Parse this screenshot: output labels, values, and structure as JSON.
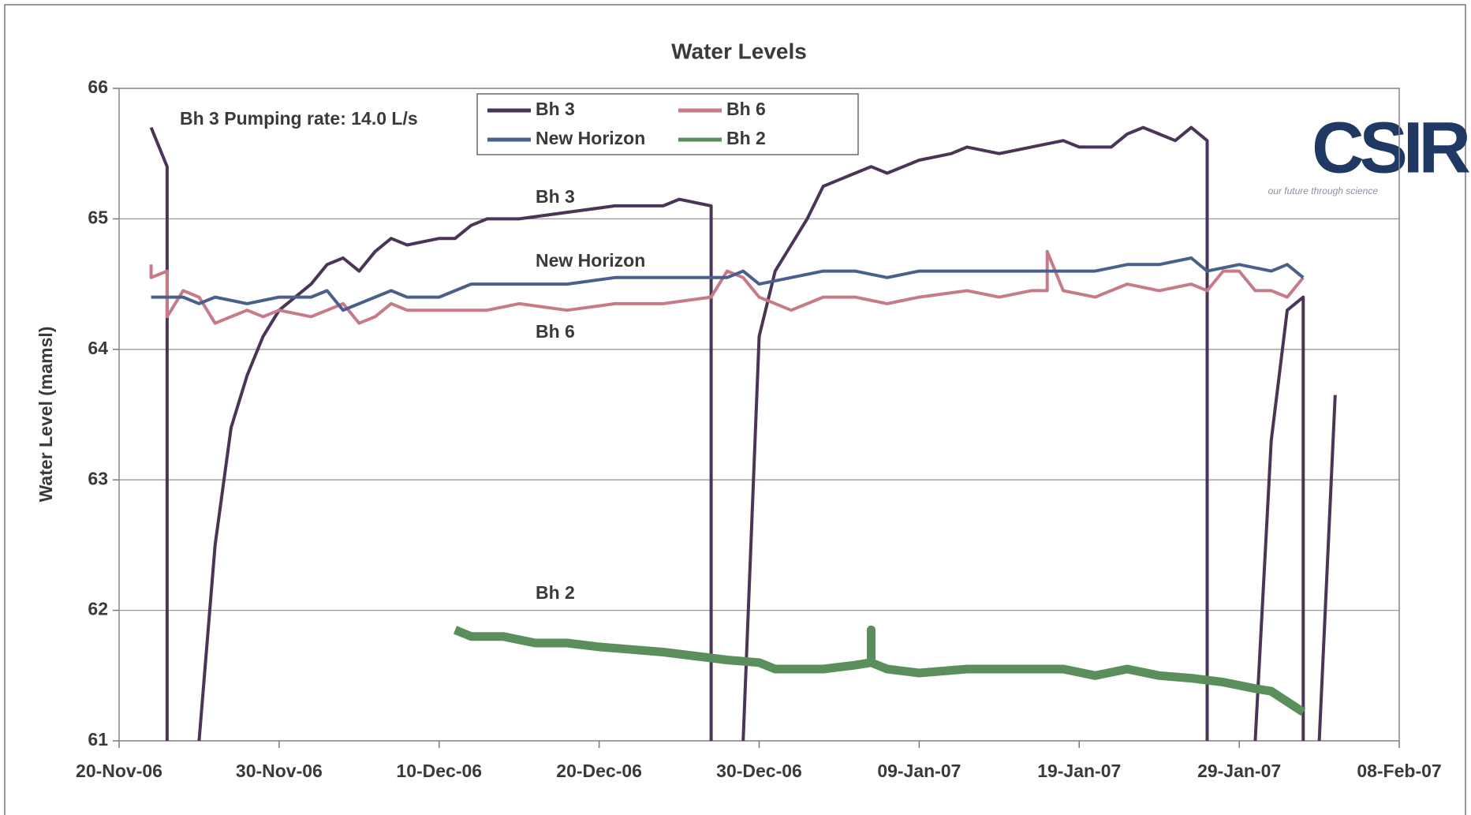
{
  "chart_data": {
    "type": "line",
    "title": "Water Levels",
    "y_label": "Water Level (mamsl)",
    "ylim": [
      61,
      66
    ],
    "yticks": [
      61,
      62,
      63,
      64,
      65,
      66
    ],
    "xlim": [
      "20-Nov-06",
      "08-Feb-07"
    ],
    "xticks": [
      "20-Nov-06",
      "30-Nov-06",
      "10-Dec-06",
      "20-Dec-06",
      "30-Dec-06",
      "09-Jan-07",
      "19-Jan-07",
      "29-Jan-07",
      "08-Feb-07"
    ],
    "grid": true,
    "legend": "top",
    "annotations": [
      "Bh 3 Pumping rate: 14.0 L/s",
      "Bh 3",
      "New Horizon",
      "Bh 6",
      "Bh 2"
    ],
    "series": [
      {
        "name": "Bh 3",
        "color": "#4b3557",
        "x": [
          "22-Nov-06",
          "23-Nov-06",
          "23-Nov-06",
          "24-Nov-06",
          "25-Nov-06",
          "26-Nov-06",
          "27-Nov-06",
          "28-Nov-06",
          "29-Nov-06",
          "30-Nov-06",
          "02-Dec-06",
          "03-Dec-06",
          "04-Dec-06",
          "05-Dec-06",
          "06-Dec-06",
          "07-Dec-06",
          "08-Dec-06",
          "10-Dec-06",
          "11-Dec-06",
          "12-Dec-06",
          "13-Dec-06",
          "15-Dec-06",
          "18-Dec-06",
          "21-Dec-06",
          "24-Dec-06",
          "25-Dec-06",
          "27-Dec-06",
          "27-Dec-06",
          "28-Dec-06",
          "29-Dec-06",
          "30-Dec-06",
          "31-Dec-06",
          "01-Jan-07",
          "02-Jan-07",
          "03-Jan-07",
          "04-Jan-07",
          "05-Jan-07",
          "06-Jan-07",
          "07-Jan-07",
          "09-Jan-07",
          "11-Jan-07",
          "12-Jan-07",
          "14-Jan-07",
          "16-Jan-07",
          "18-Jan-07",
          "19-Jan-07",
          "21-Jan-07",
          "22-Jan-07",
          "23-Jan-07",
          "24-Jan-07",
          "25-Jan-07",
          "26-Jan-07",
          "27-Jan-07",
          "27-Jan-07",
          "28-Jan-07",
          "30-Jan-07",
          "31-Jan-07",
          "01-Feb-07",
          "02-Feb-07",
          "02-Feb-07",
          "03-Feb-07",
          "03-Feb-07",
          "04-Feb-07"
        ],
        "values": [
          65.7,
          65.4,
          61,
          null,
          61,
          62.5,
          63.4,
          63.8,
          64.1,
          64.3,
          64.5,
          64.65,
          64.7,
          64.6,
          64.75,
          64.85,
          64.8,
          64.85,
          64.85,
          64.95,
          65.0,
          65.0,
          65.05,
          65.1,
          65.1,
          65.15,
          65.1,
          61,
          null,
          61,
          64.1,
          64.6,
          64.8,
          65.0,
          65.25,
          65.3,
          65.35,
          65.4,
          65.35,
          65.45,
          65.5,
          65.55,
          65.5,
          65.55,
          65.6,
          65.55,
          65.55,
          65.65,
          65.7,
          65.65,
          65.6,
          65.7,
          65.6,
          61,
          null,
          61,
          63.3,
          64.3,
          64.4,
          61,
          null,
          61,
          63.65
        ]
      },
      {
        "name": "Bh 6",
        "color": "#c77a87",
        "x": [
          "22-Nov-06",
          "22-Nov-06",
          "23-Nov-06",
          "23-Nov-06",
          "24-Nov-06",
          "25-Nov-06",
          "26-Nov-06",
          "27-Nov-06",
          "28-Nov-06",
          "29-Nov-06",
          "30-Nov-06",
          "02-Dec-06",
          "03-Dec-06",
          "04-Dec-06",
          "05-Dec-06",
          "06-Dec-06",
          "07-Dec-06",
          "08-Dec-06",
          "10-Dec-06",
          "13-Dec-06",
          "15-Dec-06",
          "18-Dec-06",
          "21-Dec-06",
          "24-Dec-06",
          "27-Dec-06",
          "28-Dec-06",
          "29-Dec-06",
          "30-Dec-06",
          "01-Jan-07",
          "03-Jan-07",
          "05-Jan-07",
          "07-Jan-07",
          "09-Jan-07",
          "12-Jan-07",
          "14-Jan-07",
          "16-Jan-07",
          "17-Jan-07",
          "17-Jan-07",
          "18-Jan-07",
          "20-Jan-07",
          "22-Jan-07",
          "24-Jan-07",
          "26-Jan-07",
          "27-Jan-07",
          "28-Jan-07",
          "29-Jan-07",
          "30-Jan-07",
          "31-Jan-07",
          "01-Feb-07",
          "02-Feb-07"
        ],
        "values": [
          64.65,
          64.55,
          64.6,
          64.25,
          64.45,
          64.4,
          64.2,
          64.25,
          64.3,
          64.25,
          64.3,
          64.25,
          64.3,
          64.35,
          64.2,
          64.25,
          64.35,
          64.3,
          64.3,
          64.3,
          64.35,
          64.3,
          64.35,
          64.35,
          64.4,
          64.6,
          64.55,
          64.4,
          64.3,
          64.4,
          64.4,
          64.35,
          64.4,
          64.45,
          64.4,
          64.45,
          64.45,
          64.75,
          64.45,
          64.4,
          64.5,
          64.45,
          64.5,
          64.45,
          64.6,
          64.6,
          64.45,
          64.45,
          64.4,
          64.55
        ]
      },
      {
        "name": "New Horizon",
        "color": "#4a5f8a",
        "x": [
          "22-Nov-06",
          "24-Nov-06",
          "25-Nov-06",
          "26-Nov-06",
          "28-Nov-06",
          "30-Nov-06",
          "02-Dec-06",
          "03-Dec-06",
          "04-Dec-06",
          "05-Dec-06",
          "06-Dec-06",
          "07-Dec-06",
          "08-Dec-06",
          "10-Dec-06",
          "12-Dec-06",
          "15-Dec-06",
          "18-Dec-06",
          "21-Dec-06",
          "24-Dec-06",
          "27-Dec-06",
          "28-Dec-06",
          "29-Dec-06",
          "30-Dec-06",
          "01-Jan-07",
          "03-Jan-07",
          "05-Jan-07",
          "07-Jan-07",
          "09-Jan-07",
          "12-Jan-07",
          "14-Jan-07",
          "16-Jan-07",
          "18-Jan-07",
          "20-Jan-07",
          "22-Jan-07",
          "24-Jan-07",
          "26-Jan-07",
          "27-Jan-07",
          "29-Jan-07",
          "31-Jan-07",
          "01-Feb-07",
          "02-Feb-07"
        ],
        "values": [
          64.4,
          64.4,
          64.35,
          64.4,
          64.35,
          64.4,
          64.4,
          64.45,
          64.3,
          64.35,
          64.4,
          64.45,
          64.4,
          64.4,
          64.5,
          64.5,
          64.5,
          64.55,
          64.55,
          64.55,
          64.55,
          64.6,
          64.5,
          64.55,
          64.6,
          64.6,
          64.55,
          64.6,
          64.6,
          64.6,
          64.6,
          64.6,
          64.6,
          64.65,
          64.65,
          64.7,
          64.6,
          64.65,
          64.6,
          64.65,
          64.55
        ]
      },
      {
        "name": "Bh 2",
        "color": "#5a8f5c",
        "x": [
          "11-Dec-06",
          "12-Dec-06",
          "14-Dec-06",
          "16-Dec-06",
          "18-Dec-06",
          "20-Dec-06",
          "22-Dec-06",
          "24-Dec-06",
          "26-Dec-06",
          "28-Dec-06",
          "30-Dec-06",
          "31-Dec-06",
          "01-Jan-07",
          "03-Jan-07",
          "05-Jan-07",
          "06-Jan-07",
          "06-Jan-07",
          "06-Jan-07",
          "07-Jan-07",
          "09-Jan-07",
          "12-Jan-07",
          "14-Jan-07",
          "16-Jan-07",
          "18-Jan-07",
          "20-Jan-07",
          "22-Jan-07",
          "24-Jan-07",
          "26-Jan-07",
          "28-Jan-07",
          "30-Jan-07",
          "31-Jan-07",
          "01-Feb-07",
          "02-Feb-07"
        ],
        "values": [
          61.85,
          61.8,
          61.8,
          61.75,
          61.75,
          61.72,
          61.7,
          61.68,
          61.65,
          61.62,
          61.6,
          61.55,
          61.55,
          61.55,
          61.58,
          61.6,
          61.85,
          61.6,
          61.55,
          61.52,
          61.55,
          61.55,
          61.55,
          61.55,
          61.5,
          61.55,
          61.5,
          61.48,
          61.45,
          61.4,
          61.38,
          61.3,
          61.22
        ]
      }
    ]
  },
  "logo": {
    "name": "CSIR",
    "tagline": "our future through science"
  }
}
